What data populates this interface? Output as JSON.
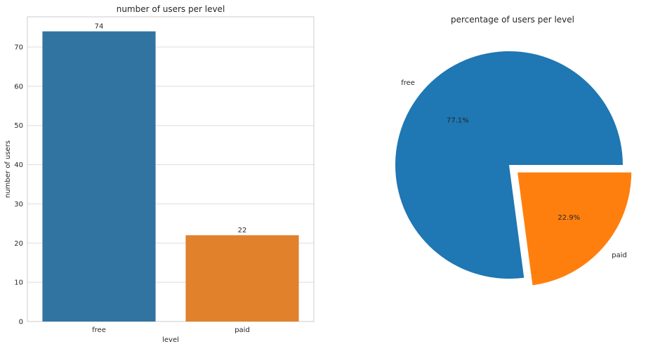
{
  "chart_data": [
    {
      "type": "bar",
      "title": "number of users per level",
      "xlabel": "level",
      "ylabel": "number of users",
      "categories": [
        "free",
        "paid"
      ],
      "values": [
        74,
        22
      ],
      "data_labels": [
        "74",
        "22"
      ],
      "ylim": [
        0,
        77.7
      ],
      "yticks": [
        0,
        10,
        20,
        30,
        40,
        50,
        60,
        70
      ],
      "colors": [
        "#3274a1",
        "#e1812c"
      ],
      "grid": true
    },
    {
      "type": "pie",
      "title": "percentage of users per level",
      "labels": [
        "free",
        "paid"
      ],
      "values": [
        77.1,
        22.9
      ],
      "percent_labels": [
        "77.1%",
        "22.9%"
      ],
      "colors": [
        "#1f77b4",
        "#ff7f0e"
      ],
      "explode": [
        0,
        0.1
      ]
    }
  ]
}
